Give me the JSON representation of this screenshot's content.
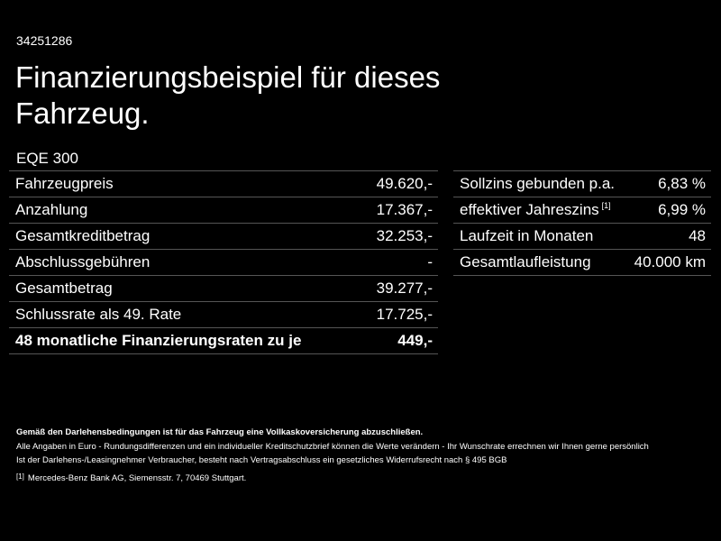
{
  "header": {
    "id": "34251286",
    "title_line1": "Finanzierungsbeispiel für dieses",
    "title_line2": "Fahrzeug."
  },
  "model": "EQE 300",
  "left_table": {
    "rows": [
      [
        "Fahrzeugpreis",
        "49.620,-"
      ],
      [
        "Anzahlung",
        "17.367,-"
      ],
      [
        "Gesamtkreditbetrag",
        "32.253,-"
      ],
      [
        "Abschlussgebühren",
        "-"
      ],
      [
        "Gesamtbetrag",
        "39.277,-"
      ],
      [
        "Schlussrate als 49. Rate",
        "17.725,-"
      ],
      [
        "48 monatliche Finanzierungsraten zu je",
        "449,-"
      ]
    ]
  },
  "right_table": {
    "rows": [
      [
        "Sollzins gebunden p.a.",
        "6,83 %"
      ],
      [
        "effektiver Jahreszins",
        "6,99 %",
        "[1]"
      ],
      [
        "Laufzeit in Monaten",
        "48"
      ],
      [
        "Gesamtlaufleistung",
        "40.000 km"
      ]
    ]
  },
  "footer": {
    "bold_note": "Gemäß den Darlehensbedingungen ist für das Fahrzeug eine Vollkaskoversicherung abzuschließen.",
    "line1": "Alle Angaben in Euro - Rundungsdifferenzen und ein individueller Kreditschutzbrief können die Werte verändern - Ihr Wunschrate errechnen wir Ihnen gerne persönlich",
    "line2": "Ist der Darlehens-/Leasingnehmer Verbraucher, besteht nach Vertragsabschluss ein gesetzliches Widerrufsrecht nach § 495 BGB",
    "footnote_mark": "[1]",
    "footnote_text": "Mercedes-Benz Bank AG, Siemensstr. 7, 70469 Stuttgart."
  }
}
